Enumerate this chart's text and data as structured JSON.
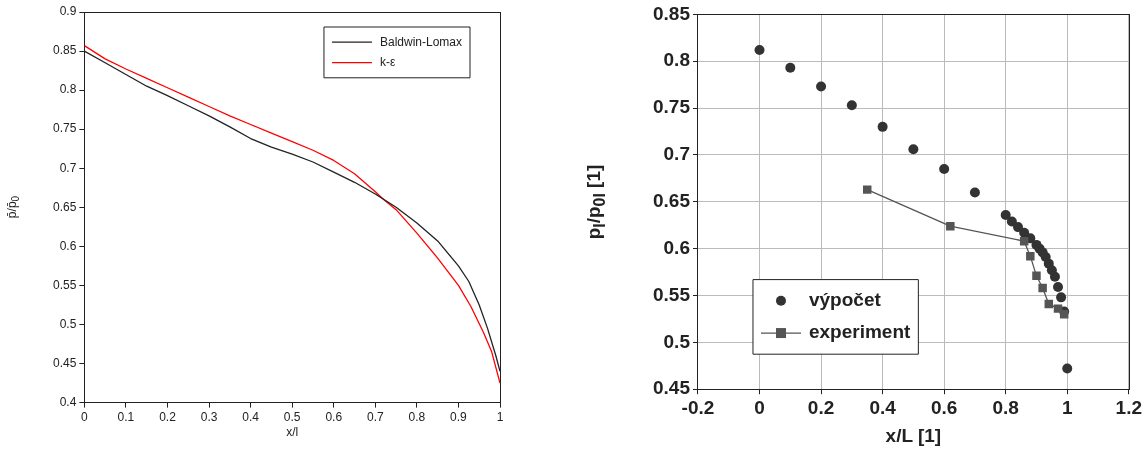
{
  "chart_data": [
    {
      "type": "line",
      "xlabel": "x/l",
      "ylabel": "p̄/p̄$_{0}$",
      "xlim": [
        0,
        1
      ],
      "ylim": [
        0.4,
        0.9
      ],
      "xticks": [
        0,
        0.1,
        0.2,
        0.3,
        0.4,
        0.5,
        0.6,
        0.7,
        0.8,
        0.9,
        1
      ],
      "yticks": [
        0.4,
        0.45,
        0.5,
        0.55,
        0.6,
        0.65,
        0.7,
        0.75,
        0.8,
        0.85,
        0.9
      ],
      "grid": false,
      "legend": "top right",
      "marker": "none",
      "line_style": "solid",
      "series": [
        {
          "name": "Baldwin-Lomax",
          "color": "#222222",
          "x": [
            0,
            0.05,
            0.1,
            0.15,
            0.2,
            0.25,
            0.3,
            0.35,
            0.4,
            0.45,
            0.5,
            0.55,
            0.6,
            0.65,
            0.7,
            0.75,
            0.8,
            0.85,
            0.9,
            0.925,
            0.95,
            0.97,
            0.99,
            1
          ],
          "values": [
            0.85,
            0.835,
            0.82,
            0.805,
            0.793,
            0.78,
            0.767,
            0.753,
            0.738,
            0.727,
            0.718,
            0.708,
            0.695,
            0.682,
            0.667,
            0.65,
            0.63,
            0.607,
            0.575,
            0.555,
            0.525,
            0.495,
            0.46,
            0.44
          ]
        },
        {
          "name": "k-ε",
          "color": "#ff0000",
          "x": [
            0,
            0.05,
            0.1,
            0.15,
            0.2,
            0.25,
            0.3,
            0.35,
            0.4,
            0.45,
            0.5,
            0.55,
            0.6,
            0.65,
            0.7,
            0.72,
            0.75,
            0.8,
            0.85,
            0.9,
            0.93,
            0.96,
            0.98,
            1
          ],
          "values": [
            0.857,
            0.84,
            0.827,
            0.815,
            0.803,
            0.791,
            0.779,
            0.767,
            0.756,
            0.745,
            0.734,
            0.723,
            0.71,
            0.693,
            0.67,
            0.66,
            0.647,
            0.617,
            0.585,
            0.55,
            0.523,
            0.49,
            0.465,
            0.425
          ]
        }
      ]
    },
    {
      "type": "scatter",
      "xlabel": "x/L [1]",
      "ylabel": "p$_{I}$/p$_{0I}$ [1]",
      "xlim": [
        -0.2,
        1.2
      ],
      "ylim": [
        0.45,
        0.85
      ],
      "xticks": [
        -0.2,
        0,
        0.2,
        0.4,
        0.6,
        0.8,
        1,
        1.2
      ],
      "yticks": [
        0.45,
        0.5,
        0.55,
        0.6,
        0.65,
        0.7,
        0.75,
        0.8,
        0.85
      ],
      "grid": true,
      "legend": "bottom left",
      "series": [
        {
          "name": "výpočet",
          "marker": "circle",
          "color": "#333333",
          "x": [
            0,
            0.1,
            0.2,
            0.3,
            0.4,
            0.5,
            0.6,
            0.7,
            0.8,
            0.82,
            0.84,
            0.86,
            0.88,
            0.9,
            0.91,
            0.92,
            0.93,
            0.94,
            0.95,
            0.96,
            0.97,
            0.98,
            0.99,
            1
          ],
          "values": [
            0.812,
            0.793,
            0.773,
            0.753,
            0.73,
            0.706,
            0.685,
            0.66,
            0.636,
            0.629,
            0.623,
            0.617,
            0.611,
            0.604,
            0.6,
            0.596,
            0.591,
            0.584,
            0.577,
            0.57,
            0.559,
            0.548,
            0.533,
            0.472
          ]
        },
        {
          "name": "experiment",
          "type": "line",
          "marker": "square",
          "color": "#555555",
          "x": [
            0.35,
            0.62,
            0.86,
            0.88,
            0.9,
            0.92,
            0.94,
            0.97,
            0.99
          ],
          "values": [
            0.663,
            0.624,
            0.608,
            0.592,
            0.571,
            0.558,
            0.541,
            0.536,
            0.53
          ]
        }
      ]
    }
  ]
}
